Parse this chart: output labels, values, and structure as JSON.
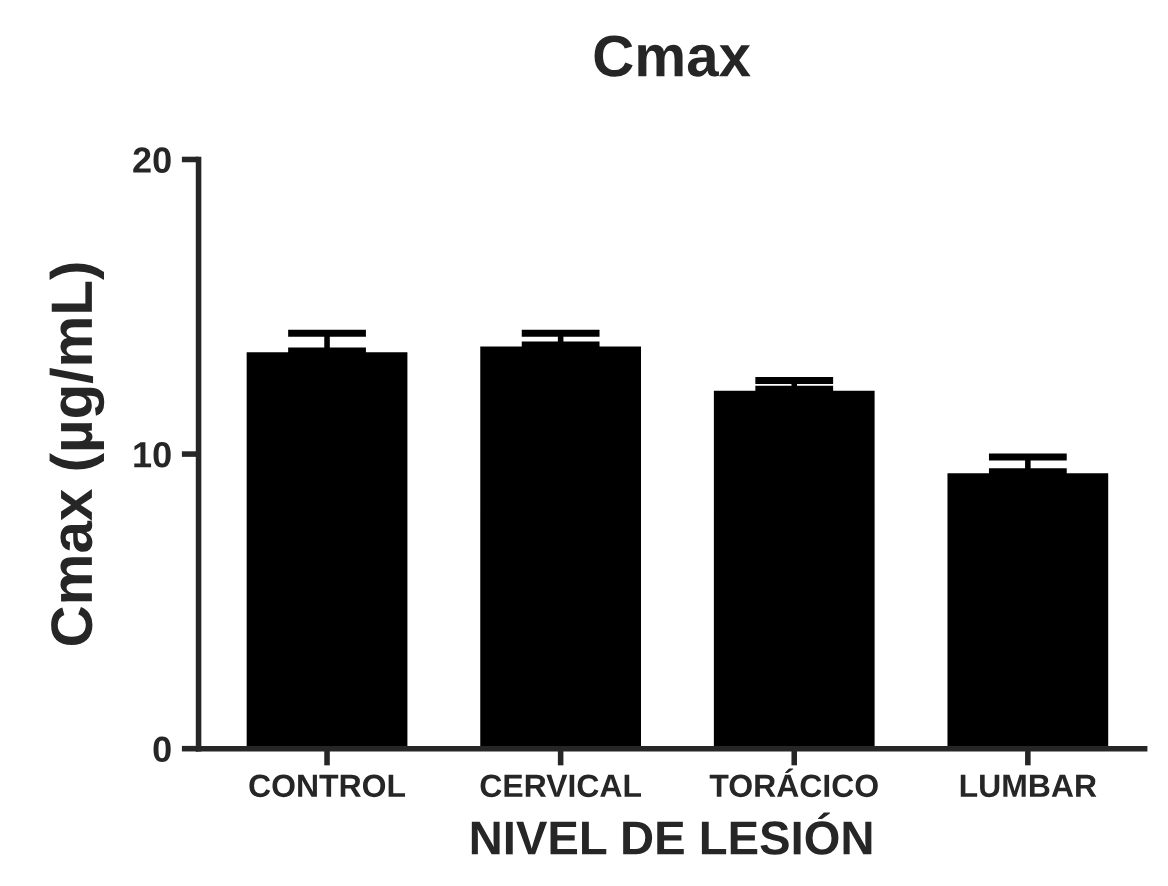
{
  "chart_data": {
    "type": "bar",
    "title": "Cmax",
    "xlabel": "NIVEL DE LESIÓN",
    "ylabel": "Cmax (µg/mL)",
    "categories": [
      "CONTROL",
      "CERVICAL",
      "TORÁCICO",
      "LUMBAR"
    ],
    "values": [
      13.5,
      13.7,
      12.2,
      9.4
    ],
    "errors": [
      [
        13.5,
        14.1
      ],
      [
        13.7,
        14.1
      ],
      [
        12.2,
        12.5
      ],
      [
        9.4,
        9.9
      ]
    ],
    "color": "#000000",
    "ylim": [
      0,
      20
    ],
    "yticks": [
      0,
      10,
      20
    ],
    "grid": false,
    "legend": false
  }
}
